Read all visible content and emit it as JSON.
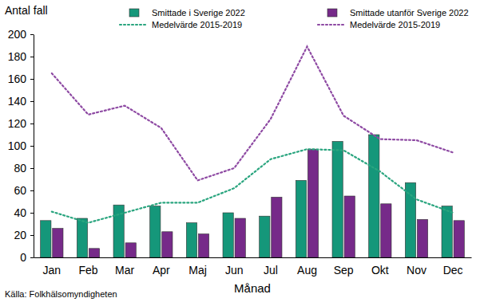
{
  "chart_data": {
    "type": "bar",
    "ylabel": "Antal fall",
    "xlabel": "Månad",
    "annotations": [
      "Källa: Folkhälsomyndigheten"
    ],
    "categories": [
      "Jan",
      "Feb",
      "Mar",
      "Apr",
      "Maj",
      "Jun",
      "Jul",
      "Aug",
      "Sep",
      "Okt",
      "Nov",
      "Dec"
    ],
    "series": [
      {
        "name": "Smittade i Sverige 2022",
        "type": "bar",
        "color": "#15977a",
        "values": [
          33,
          35,
          47,
          46,
          31,
          40,
          37,
          69,
          104,
          110,
          67,
          46
        ]
      },
      {
        "name": "Smittade utanför Sverige 2022",
        "type": "bar",
        "color": "#762a89",
        "values": [
          26,
          8,
          13,
          23,
          21,
          35,
          54,
          97,
          55,
          48,
          34,
          33
        ]
      },
      {
        "name": "Medelvärde 2015-2019",
        "type": "line",
        "line_style": "dotted",
        "color": "#2aa57f",
        "values": [
          41,
          31,
          40,
          49,
          49,
          62,
          88,
          97,
          96,
          77,
          52,
          40
        ]
      },
      {
        "name": "Medelvärde 2015-2019",
        "type": "line",
        "line_style": "dotted",
        "color": "#8e4aa3",
        "values": [
          165,
          128,
          136,
          116,
          69,
          80,
          124,
          189,
          127,
          106,
          105,
          94
        ]
      }
    ],
    "ylim": [
      0,
      200
    ],
    "yticks": [
      0,
      20,
      40,
      60,
      80,
      100,
      120,
      140,
      160,
      180,
      200
    ],
    "grid": false,
    "legend": "top"
  }
}
